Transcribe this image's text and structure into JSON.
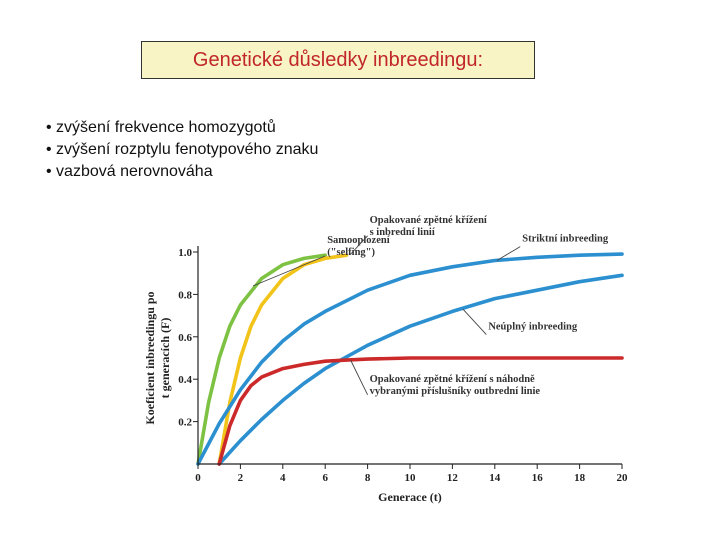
{
  "slide": {
    "title": "Genetické důsledky inbreedingu:",
    "bullets": [
      "zvýšení frekvence homozygotů",
      "zvýšení rozptylu fenotypového znaku",
      "vazbová nerovnováha"
    ]
  },
  "chart_data": {
    "type": "line",
    "xlabel": "Generace (t)",
    "ylabel_line1": "Koeficient inbreedingu po",
    "ylabel_line2": "t generacích (F)",
    "xlim": [
      0,
      20
    ],
    "ylim": [
      0,
      1.0
    ],
    "xticks": [
      0,
      2,
      4,
      6,
      8,
      10,
      12,
      14,
      16,
      18,
      20
    ],
    "yticks": [
      0.2,
      0.4,
      0.6,
      0.8,
      1.0
    ],
    "grid": false,
    "series": [
      {
        "name": "Samooplození (\"selfing\")",
        "color": "#7dc242",
        "x": [
          0,
          0.5,
          1,
          1.5,
          2,
          3,
          4,
          5,
          6
        ],
        "y": [
          0,
          0.29,
          0.5,
          0.65,
          0.75,
          0.875,
          0.94,
          0.97,
          0.985
        ]
      },
      {
        "name": "Opakované zpětné křížení s inbrední linií",
        "color": "#f2c318",
        "x": [
          1,
          1.5,
          2,
          2.5,
          3,
          4,
          5,
          6,
          7
        ],
        "y": [
          0,
          0.29,
          0.5,
          0.65,
          0.75,
          0.875,
          0.94,
          0.97,
          0.985
        ]
      },
      {
        "name": "Striktní inbreeding",
        "color": "#2b8fd0",
        "x": [
          0,
          1,
          2,
          3,
          4,
          5,
          6,
          8,
          10,
          12,
          14,
          16,
          18,
          20
        ],
        "y": [
          0,
          0.19,
          0.35,
          0.48,
          0.58,
          0.66,
          0.72,
          0.82,
          0.89,
          0.93,
          0.96,
          0.975,
          0.985,
          0.99
        ]
      },
      {
        "name": "Neúplný inbreeding",
        "color": "#2b8fd0",
        "x": [
          1,
          2,
          3,
          4,
          5,
          6,
          8,
          10,
          12,
          14,
          16,
          18,
          20
        ],
        "y": [
          0,
          0.11,
          0.21,
          0.3,
          0.38,
          0.45,
          0.56,
          0.65,
          0.72,
          0.78,
          0.82,
          0.86,
          0.89
        ]
      },
      {
        "name": "Opakované zpětné křížení s náhodně vybranými příslušníky outbrední linie",
        "color": "#cc2a2a",
        "x": [
          1,
          1.5,
          2,
          2.5,
          3,
          4,
          5,
          6,
          7,
          8,
          10,
          12,
          14,
          16,
          18,
          20
        ],
        "y": [
          0,
          0.18,
          0.3,
          0.37,
          0.41,
          0.45,
          0.47,
          0.485,
          0.49,
          0.495,
          0.5,
          0.5,
          0.5,
          0.5,
          0.5,
          0.5
        ]
      }
    ],
    "annotations": [
      {
        "lines": [
          "Samooplození",
          "(\"selfing\")"
        ],
        "at": [
          6.0,
          1.0
        ],
        "to": [
          2.6,
          0.84
        ]
      },
      {
        "lines": [
          "Opakované zpětné křížení",
          "s inbrední linií"
        ],
        "at": [
          8.0,
          1.095
        ],
        "to": [
          7.2,
          0.99
        ]
      },
      {
        "lines": [
          "Striktní inbreeding"
        ],
        "at": [
          15.2,
          1.035
        ],
        "to": [
          14.1,
          0.96
        ]
      },
      {
        "lines": [
          "Neúplný inbreeding"
        ],
        "at": [
          13.6,
          0.62
        ],
        "to": [
          12.5,
          0.73
        ]
      },
      {
        "lines": [
          "Opakované zpětné křížení s náhodně",
          "vybranými příslušníky outbrední linie"
        ],
        "at": [
          8.0,
          0.345
        ],
        "to": [
          7.2,
          0.49
        ]
      }
    ]
  }
}
